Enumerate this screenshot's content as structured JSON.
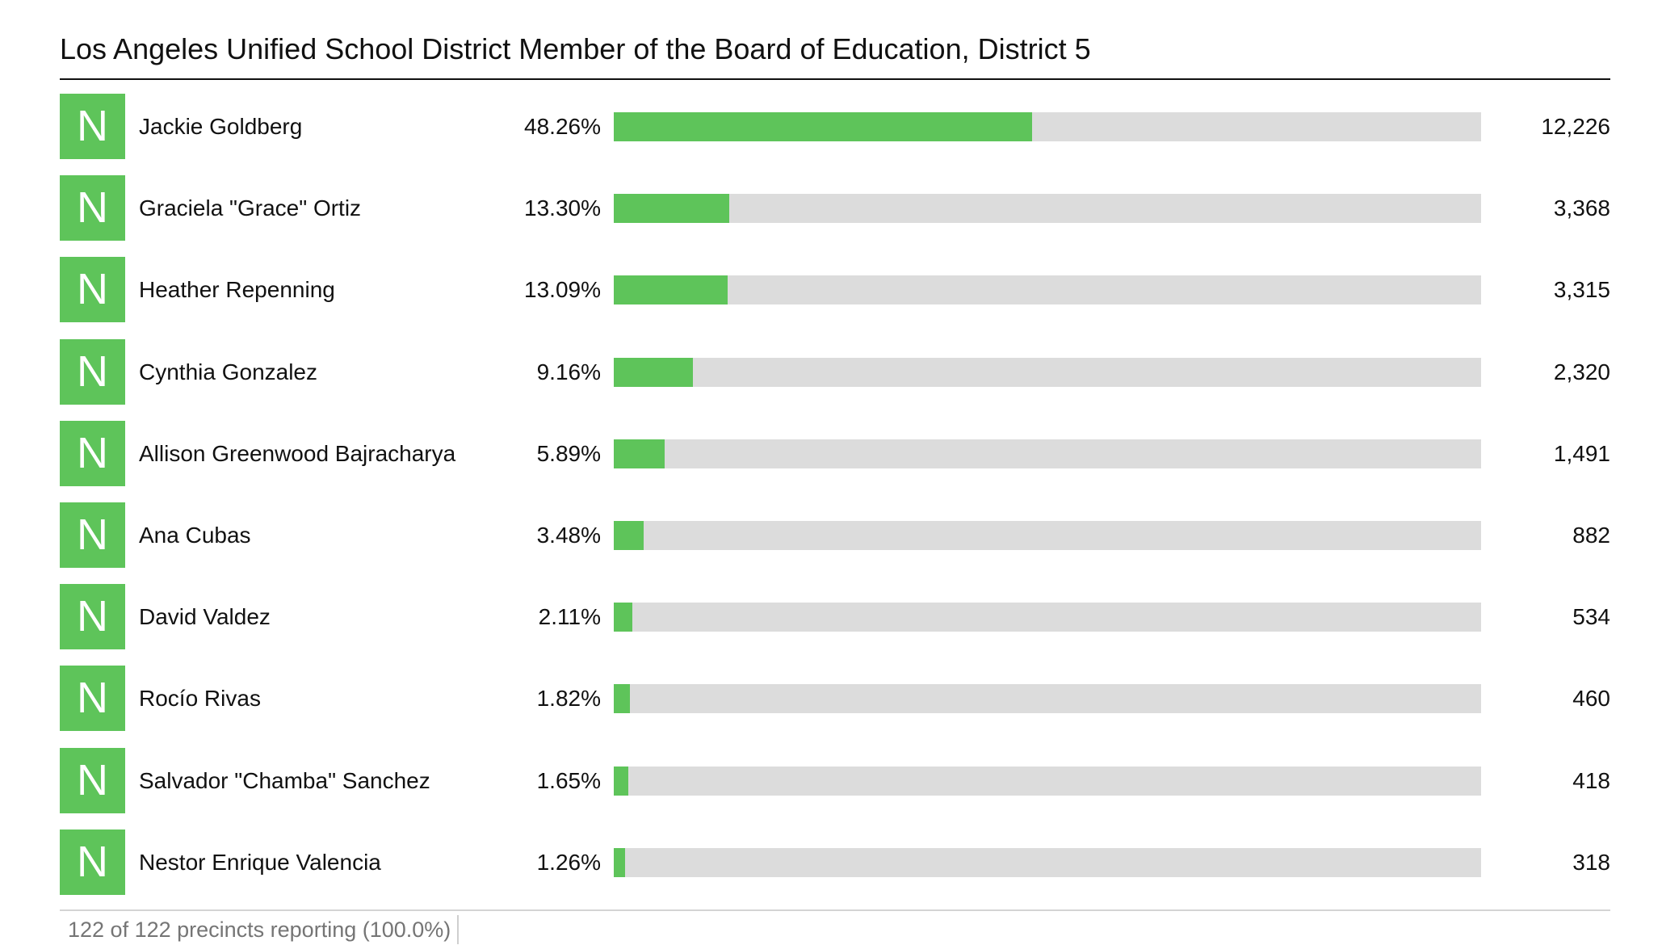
{
  "chart_data": {
    "type": "bar",
    "title": "Los Angeles Unified School District Member of the Board of Education, District 5",
    "badge_color": "#5ec45a",
    "track_color": "#dcdcdc",
    "xlim": [
      0,
      100
    ],
    "rows": [
      {
        "badge": "N",
        "name": "Jackie Goldberg",
        "percent": 48.26,
        "percent_label": "48.26%",
        "votes": "12,226"
      },
      {
        "badge": "N",
        "name": "Graciela \"Grace\" Ortiz",
        "percent": 13.3,
        "percent_label": "13.30%",
        "votes": "3,368"
      },
      {
        "badge": "N",
        "name": "Heather Repenning",
        "percent": 13.09,
        "percent_label": "13.09%",
        "votes": "3,315"
      },
      {
        "badge": "N",
        "name": "Cynthia Gonzalez",
        "percent": 9.16,
        "percent_label": "9.16%",
        "votes": "2,320"
      },
      {
        "badge": "N",
        "name": "Allison Greenwood Bajracharya",
        "percent": 5.89,
        "percent_label": "5.89%",
        "votes": "1,491"
      },
      {
        "badge": "N",
        "name": "Ana Cubas",
        "percent": 3.48,
        "percent_label": "3.48%",
        "votes": "882"
      },
      {
        "badge": "N",
        "name": "David Valdez",
        "percent": 2.11,
        "percent_label": "2.11%",
        "votes": "534"
      },
      {
        "badge": "N",
        "name": "Rocío Rivas",
        "percent": 1.82,
        "percent_label": "1.82%",
        "votes": "460"
      },
      {
        "badge": "N",
        "name": "Salvador \"Chamba\" Sanchez",
        "percent": 1.65,
        "percent_label": "1.65%",
        "votes": "418"
      },
      {
        "badge": "N",
        "name": "Nestor Enrique Valencia",
        "percent": 1.26,
        "percent_label": "1.26%",
        "votes": "318"
      }
    ],
    "footer": "122 of 122 precincts reporting (100.0%)"
  }
}
